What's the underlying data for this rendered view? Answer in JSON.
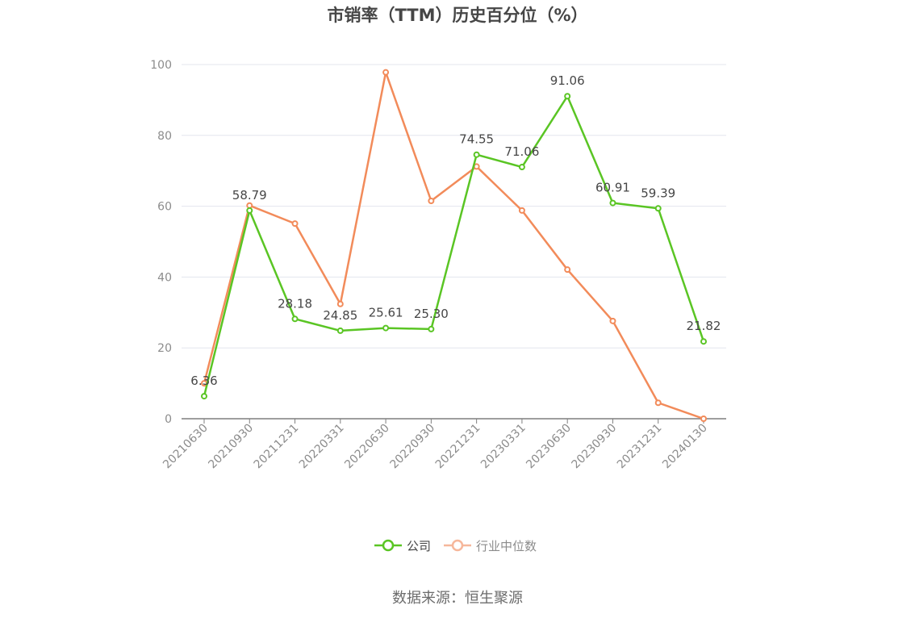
{
  "chart_data": {
    "type": "line",
    "title": "市销率（TTM）历史百分位（%）",
    "xlabel": "",
    "ylabel": "",
    "categories": [
      "20210630",
      "20210930",
      "20211231",
      "20220331",
      "20220630",
      "20220930",
      "20221231",
      "20230331",
      "20230630",
      "20230930",
      "20231231",
      "20240130"
    ],
    "ylim": [
      0,
      100
    ],
    "yticks": [
      0,
      20,
      40,
      60,
      80,
      100
    ],
    "grid": true,
    "legend_position": "bottom",
    "series": [
      {
        "name": "公司",
        "color": "#5ac524",
        "values": [
          6.36,
          58.79,
          28.18,
          24.85,
          25.61,
          25.3,
          74.55,
          71.06,
          91.06,
          60.91,
          59.39,
          21.82
        ],
        "labels": [
          "6.36",
          "58.79",
          "28.18",
          "24.85",
          "25.61",
          "25.30",
          "74.55",
          "71.06",
          "91.06",
          "60.91",
          "59.39",
          "21.82"
        ]
      },
      {
        "name": "行业中位数",
        "color": "#f28b5a",
        "legend_color": "#f6b79b",
        "values": [
          10.0,
          60.2,
          55.1,
          32.4,
          97.8,
          61.5,
          71.2,
          58.8,
          42.1,
          27.6,
          4.5,
          0.0
        ]
      }
    ]
  },
  "source": "数据来源：恒生聚源"
}
